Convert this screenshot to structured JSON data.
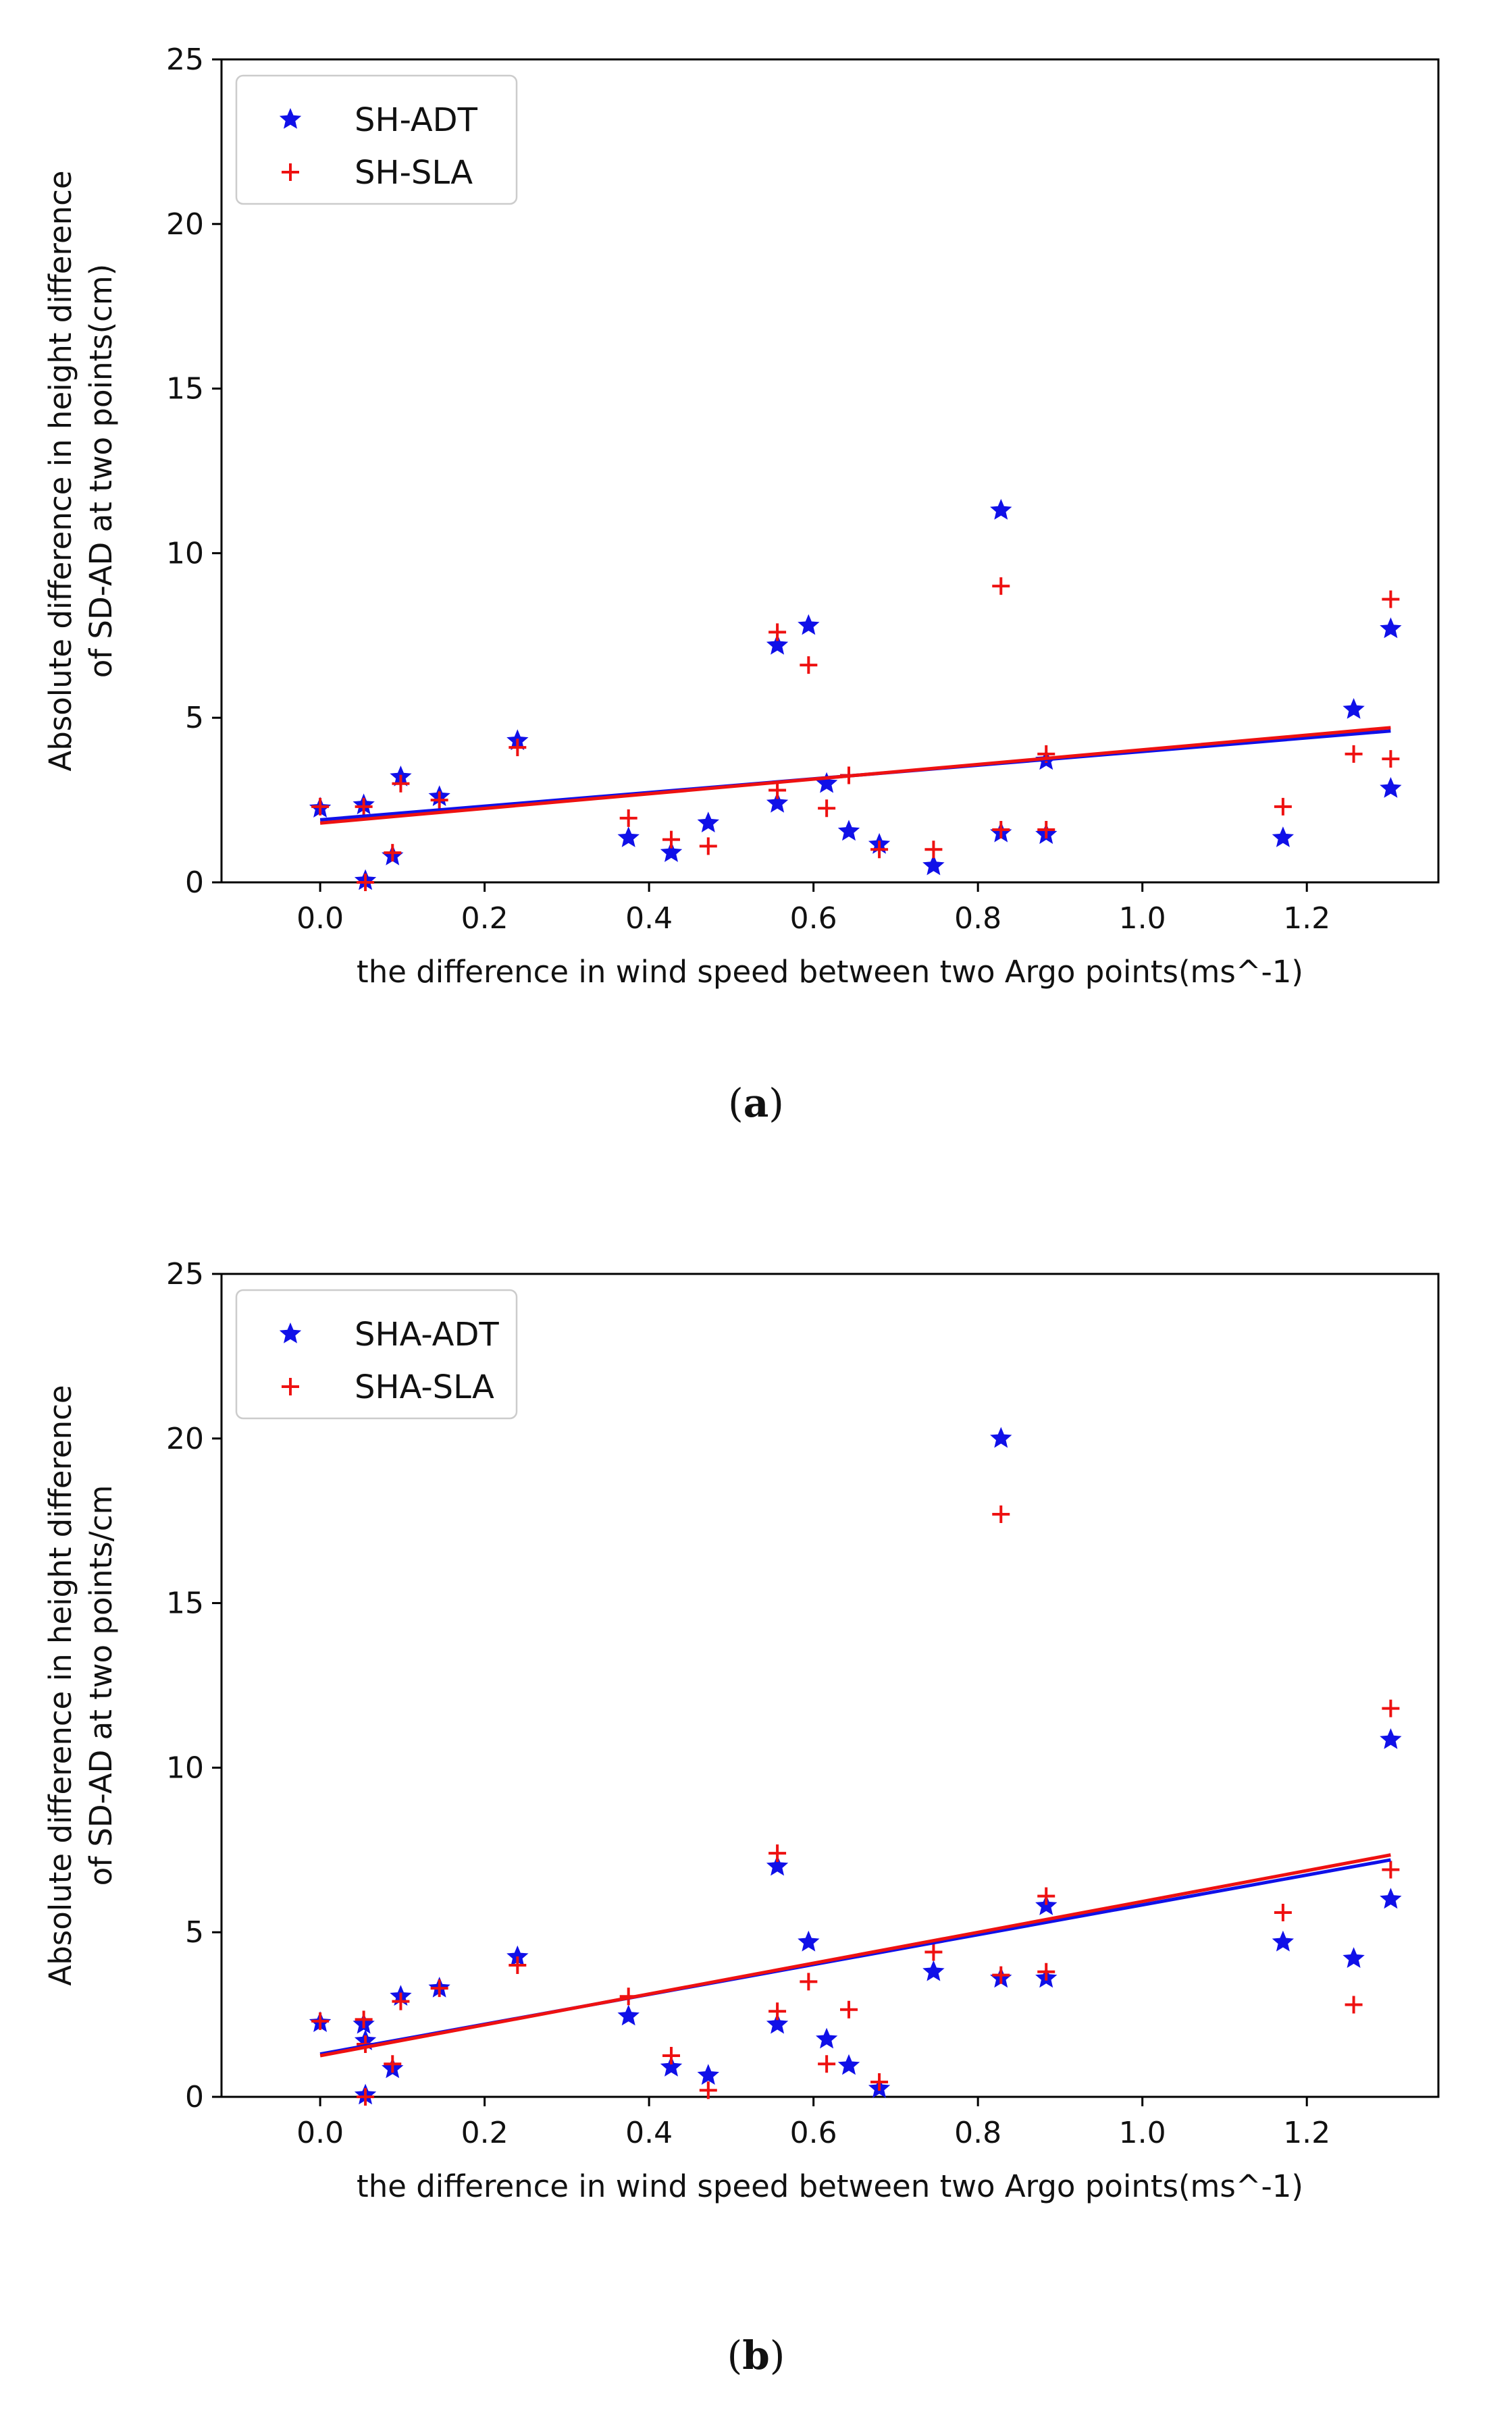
{
  "chart_data": [
    {
      "id": "a",
      "type": "scatter",
      "caption_letter": "a",
      "xlabel": "the difference in wind speed between two Argo points(ms^-1)",
      "ylabel_lines": [
        "Absolute difference in height difference",
        "of SD-AD at two points(cm)"
      ],
      "xlim": [
        -0.12,
        1.36
      ],
      "ylim": [
        0,
        25
      ],
      "xticks": [
        0.0,
        0.2,
        0.4,
        0.6,
        0.8,
        1.0,
        1.2
      ],
      "xtick_labels": [
        "0.0",
        "0.2",
        "0.4",
        "0.6",
        "0.8",
        "1.0",
        "1.2"
      ],
      "yticks": [
        0,
        5,
        10,
        15,
        20,
        25
      ],
      "ytick_labels": [
        "0",
        "5",
        "10",
        "15",
        "20",
        "25"
      ],
      "legend_position": "top-left",
      "series": [
        {
          "name": "SH-ADT",
          "marker": "star",
          "color": "#1010e8",
          "points": [
            [
              0.0,
              2.25
            ],
            [
              0.053,
              2.35
            ],
            [
              0.055,
              0.05
            ],
            [
              0.088,
              0.8
            ],
            [
              0.098,
              3.2
            ],
            [
              0.145,
              2.6
            ],
            [
              0.24,
              4.3
            ],
            [
              0.375,
              1.35
            ],
            [
              0.427,
              0.9
            ],
            [
              0.472,
              1.8
            ],
            [
              0.556,
              2.4
            ],
            [
              0.556,
              7.2
            ],
            [
              0.594,
              7.8
            ],
            [
              0.616,
              3.0
            ],
            [
              0.643,
              1.55
            ],
            [
              0.68,
              1.15
            ],
            [
              0.746,
              0.5
            ],
            [
              0.828,
              11.3
            ],
            [
              0.828,
              1.5
            ],
            [
              0.883,
              3.7
            ],
            [
              0.883,
              1.45
            ],
            [
              1.171,
              1.35
            ],
            [
              1.257,
              5.25
            ],
            [
              1.302,
              7.7
            ],
            [
              1.302,
              2.85
            ]
          ],
          "fit": [
            [
              0.0,
              1.9
            ],
            [
              1.302,
              4.6
            ]
          ]
        },
        {
          "name": "SH-SLA",
          "marker": "plus",
          "color": "#ee1111",
          "points": [
            [
              0.0,
              2.3
            ],
            [
              0.053,
              2.3
            ],
            [
              0.055,
              0.0
            ],
            [
              0.088,
              0.9
            ],
            [
              0.098,
              3.0
            ],
            [
              0.145,
              2.5
            ],
            [
              0.24,
              4.1
            ],
            [
              0.375,
              1.95
            ],
            [
              0.427,
              1.3
            ],
            [
              0.472,
              1.1
            ],
            [
              0.556,
              2.8
            ],
            [
              0.556,
              7.6
            ],
            [
              0.594,
              6.6
            ],
            [
              0.616,
              2.25
            ],
            [
              0.643,
              3.25
            ],
            [
              0.68,
              1.0
            ],
            [
              0.746,
              1.0
            ],
            [
              0.828,
              9.0
            ],
            [
              0.828,
              1.6
            ],
            [
              0.883,
              3.9
            ],
            [
              0.883,
              1.6
            ],
            [
              1.171,
              2.3
            ],
            [
              1.257,
              3.9
            ],
            [
              1.302,
              8.6
            ],
            [
              1.302,
              3.75
            ]
          ],
          "fit": [
            [
              0.0,
              1.8
            ],
            [
              1.302,
              4.7
            ]
          ]
        }
      ]
    },
    {
      "id": "b",
      "type": "scatter",
      "caption_letter": "b",
      "xlabel": "the difference in wind speed between two Argo points(ms^-1)",
      "ylabel_lines": [
        "Absolute difference in height difference",
        "of SD-AD at two points/cm"
      ],
      "xlim": [
        -0.12,
        1.36
      ],
      "ylim": [
        0,
        25
      ],
      "xticks": [
        0.0,
        0.2,
        0.4,
        0.6,
        0.8,
        1.0,
        1.2
      ],
      "xtick_labels": [
        "0.0",
        "0.2",
        "0.4",
        "0.6",
        "0.8",
        "1.0",
        "1.2"
      ],
      "yticks": [
        0,
        5,
        10,
        15,
        20,
        25
      ],
      "ytick_labels": [
        "0",
        "5",
        "10",
        "15",
        "20",
        "25"
      ],
      "legend_position": "top-left",
      "series": [
        {
          "name": "SHA-ADT",
          "marker": "star",
          "color": "#1010e8",
          "points": [
            [
              0.0,
              2.25
            ],
            [
              0.053,
              2.2
            ],
            [
              0.055,
              1.7
            ],
            [
              0.055,
              0.05
            ],
            [
              0.088,
              0.85
            ],
            [
              0.098,
              3.05
            ],
            [
              0.145,
              3.3
            ],
            [
              0.24,
              4.25
            ],
            [
              0.375,
              2.45
            ],
            [
              0.427,
              0.9
            ],
            [
              0.472,
              0.65
            ],
            [
              0.556,
              2.2
            ],
            [
              0.556,
              7.0
            ],
            [
              0.594,
              4.7
            ],
            [
              0.616,
              1.75
            ],
            [
              0.643,
              0.95
            ],
            [
              0.68,
              0.25
            ],
            [
              0.746,
              3.8
            ],
            [
              0.828,
              20.0
            ],
            [
              0.828,
              3.6
            ],
            [
              0.883,
              5.8
            ],
            [
              0.883,
              3.6
            ],
            [
              1.171,
              4.7
            ],
            [
              1.257,
              4.2
            ],
            [
              1.302,
              10.85
            ],
            [
              1.302,
              6.0
            ]
          ],
          "fit": [
            [
              0.0,
              1.3
            ],
            [
              1.302,
              7.2
            ]
          ]
        },
        {
          "name": "SHA-SLA",
          "marker": "plus",
          "color": "#ee1111",
          "points": [
            [
              0.0,
              2.3
            ],
            [
              0.053,
              2.35
            ],
            [
              0.055,
              1.6
            ],
            [
              0.055,
              0.0
            ],
            [
              0.088,
              1.0
            ],
            [
              0.098,
              2.9
            ],
            [
              0.145,
              3.3
            ],
            [
              0.24,
              4.0
            ],
            [
              0.375,
              3.05
            ],
            [
              0.427,
              1.25
            ],
            [
              0.472,
              0.2
            ],
            [
              0.556,
              2.6
            ],
            [
              0.556,
              7.4
            ],
            [
              0.594,
              3.5
            ],
            [
              0.616,
              1.0
            ],
            [
              0.643,
              2.65
            ],
            [
              0.68,
              0.45
            ],
            [
              0.746,
              4.4
            ],
            [
              0.828,
              17.7
            ],
            [
              0.828,
              3.7
            ],
            [
              0.883,
              6.1
            ],
            [
              0.883,
              3.8
            ],
            [
              1.171,
              5.6
            ],
            [
              1.257,
              2.8
            ],
            [
              1.302,
              11.8
            ],
            [
              1.302,
              6.9
            ]
          ],
          "fit": [
            [
              0.0,
              1.25
            ],
            [
              1.302,
              7.35
            ]
          ]
        }
      ]
    }
  ]
}
